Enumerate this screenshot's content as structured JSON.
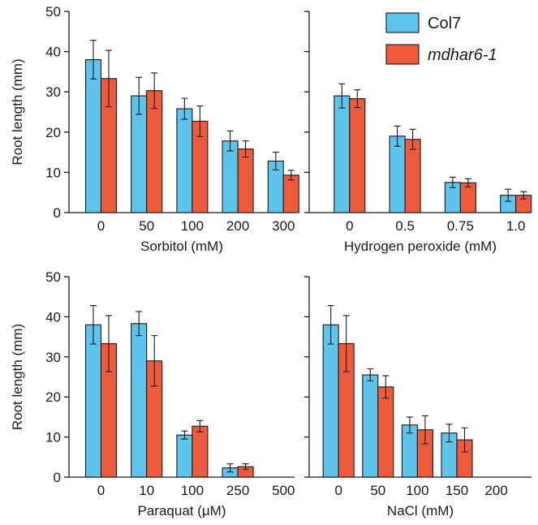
{
  "colors": {
    "series_a": "#5ec4ec",
    "series_b": "#ee5a3c"
  },
  "legend": {
    "items": [
      {
        "label": "Col7",
        "italic": false
      },
      {
        "label": "mdhar6-1",
        "italic": true
      }
    ]
  },
  "chart_data": [
    {
      "type": "bar",
      "ylabel": "Root length (mm)",
      "ylim": [
        0,
        50
      ],
      "yticks": [
        "0",
        "10",
        "20",
        "30",
        "40",
        "50"
      ],
      "xlabel": "Sorbitol (mM)",
      "categories": [
        "0",
        "50",
        "100",
        "200",
        "300"
      ],
      "series": [
        {
          "name": "Col7",
          "values": [
            38,
            29,
            25.8,
            17.8,
            12.8
          ],
          "errors": [
            4.8,
            4.6,
            2.6,
            2.5,
            2.2
          ]
        },
        {
          "name": "mdhar6-1",
          "values": [
            33.3,
            30.3,
            22.7,
            15.8,
            9.3
          ],
          "errors": [
            7,
            4.4,
            3.8,
            2,
            1.2
          ]
        }
      ]
    },
    {
      "type": "bar",
      "ylabel": "",
      "ylim": [
        0,
        50
      ],
      "yticks": [],
      "xlabel": "Hydrogen peroxide (mM)",
      "categories": [
        "0",
        "0.5",
        "0.75",
        "1.0"
      ],
      "series": [
        {
          "name": "Col7",
          "values": [
            29,
            19,
            7.5,
            4.3
          ],
          "errors": [
            3,
            2.5,
            1.3,
            1.5
          ]
        },
        {
          "name": "mdhar6-1",
          "values": [
            28.3,
            18.2,
            7.4,
            4.3
          ],
          "errors": [
            2.2,
            2.5,
            1,
            0.9
          ]
        }
      ]
    },
    {
      "type": "bar",
      "ylabel": "Root length (mm)",
      "ylim": [
        0,
        50
      ],
      "yticks": [
        "0",
        "10",
        "20",
        "30",
        "40",
        "50"
      ],
      "xlabel": "Paraquat (μM)",
      "categories": [
        "0",
        "10",
        "100",
        "250",
        "500"
      ],
      "series": [
        {
          "name": "Col7",
          "values": [
            38,
            38.3,
            10.5,
            2.3,
            0
          ],
          "errors": [
            4.8,
            3,
            1,
            1,
            0
          ]
        },
        {
          "name": "mdhar6-1",
          "values": [
            33.3,
            29,
            12.7,
            2.6,
            0
          ],
          "errors": [
            7,
            6.3,
            1.4,
            0.7,
            0
          ]
        }
      ]
    },
    {
      "type": "bar",
      "ylabel": "",
      "ylim": [
        0,
        50
      ],
      "yticks": [],
      "xlabel": "NaCl (mM)",
      "categories": [
        "0",
        "50",
        "100",
        "150",
        "200"
      ],
      "series": [
        {
          "name": "Col7",
          "values": [
            38,
            25.5,
            13,
            11,
            0
          ],
          "errors": [
            4.8,
            1.5,
            2,
            2.2,
            0
          ]
        },
        {
          "name": "mdhar6-1",
          "values": [
            33.3,
            22.5,
            11.8,
            9.3,
            0
          ],
          "errors": [
            7,
            2.8,
            3.5,
            3,
            0
          ]
        }
      ]
    }
  ]
}
